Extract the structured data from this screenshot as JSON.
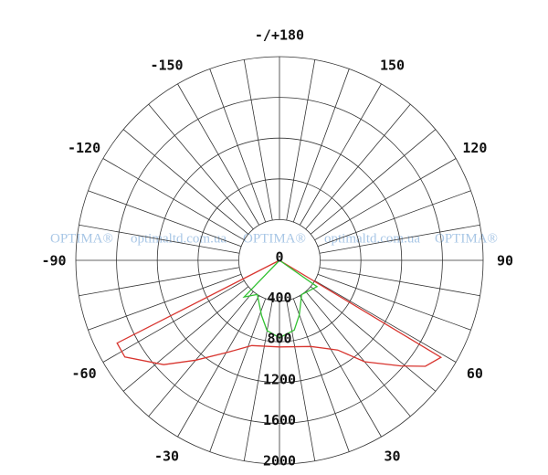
{
  "chart_data": {
    "type": "polar",
    "theta_zero": "bottom",
    "theta_direction": "clockwise-right",
    "rlim": [
      0,
      2000
    ],
    "rticks": [
      0,
      400,
      800,
      1200,
      1600,
      2000
    ],
    "thetaticks": [
      {
        "value": 180,
        "label": "-/+180"
      },
      150,
      120,
      90,
      60,
      30,
      -30,
      -60,
      -90,
      -120,
      -150
    ],
    "thetagrid": [
      -170,
      -160,
      -150,
      -140,
      -130,
      -120,
      -110,
      -100,
      -90,
      -80,
      -70,
      -60,
      -50,
      -40,
      -30,
      -20,
      -10,
      0,
      10,
      20,
      30,
      40,
      50,
      60,
      70,
      80,
      90,
      100,
      110,
      120,
      130,
      140,
      150,
      160,
      170,
      180
    ],
    "series": [
      {
        "color": "#d8352f",
        "x": [
          -70,
          -63,
          -58,
          -48,
          -40,
          -29,
          -18,
          0,
          20,
          33,
          40,
          49,
          54,
          59,
          65
        ],
        "values": [
          0,
          1790,
          1790,
          1530,
          1280,
          1030,
          880,
          850,
          900,
          1050,
          1300,
          1580,
          1770,
          1850,
          0
        ]
      },
      {
        "color": "#33c233",
        "x": [
          -55,
          -44,
          -33,
          -18,
          -10,
          0,
          12,
          20,
          33,
          55,
          65
        ],
        "values": [
          0,
          500,
          400,
          570,
          700,
          760,
          700,
          570,
          400,
          450,
          0
        ]
      }
    ]
  },
  "watermark": [
    "OPTIMA®",
    "optimaltd.com.ua",
    "OPTIMA®",
    "optimaltd.com.ua",
    "OPTIMA®"
  ]
}
